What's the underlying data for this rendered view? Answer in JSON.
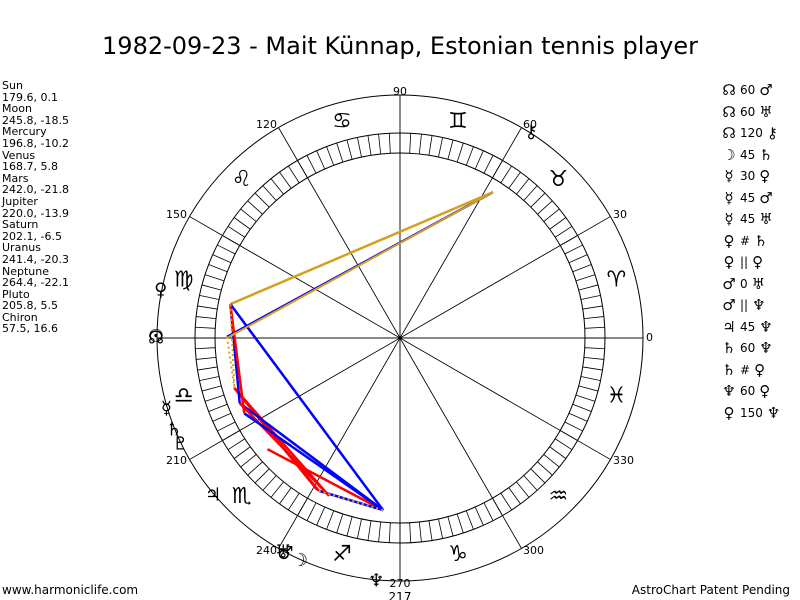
{
  "title": "1982-09-23 - Mait Künnap, Estonian tennis player",
  "footer": {
    "left": "www.harmoniclife.com",
    "right": "AstroChart Patent Pending"
  },
  "planets": [
    {
      "name": "Sun",
      "glyph": "☉",
      "lon": 179.6,
      "lat": 0.1,
      "coords": "179.6, 0.1"
    },
    {
      "name": "Moon",
      "glyph": "☽",
      "lon": 245.8,
      "lat": -18.5,
      "coords": "245.8, -18.5"
    },
    {
      "name": "Mercury",
      "glyph": "☿",
      "lon": 196.8,
      "lat": -10.2,
      "coords": "196.8, -10.2"
    },
    {
      "name": "Venus",
      "glyph": "♀",
      "lon": 168.7,
      "lat": 5.8,
      "coords": "168.7, 5.8"
    },
    {
      "name": "Mars",
      "glyph": "♂",
      "lon": 242.0,
      "lat": -21.8,
      "coords": "242.0, -21.8"
    },
    {
      "name": "Jupiter",
      "glyph": "♃",
      "lon": 220.0,
      "lat": -13.9,
      "coords": "220.0, -13.9"
    },
    {
      "name": "Saturn",
      "glyph": "♄",
      "lon": 202.1,
      "lat": -6.5,
      "coords": "202.1, -6.5"
    },
    {
      "name": "Uranus",
      "glyph": "♅",
      "lon": 241.4,
      "lat": -20.3,
      "coords": "241.4, -20.3"
    },
    {
      "name": "Neptune",
      "glyph": "♆",
      "lon": 264.4,
      "lat": -22.1,
      "coords": "264.4, -22.1"
    },
    {
      "name": "Pluto",
      "glyph": "♇",
      "lon": 205.8,
      "lat": 5.5,
      "coords": "205.8, 5.5"
    },
    {
      "name": "Chiron",
      "glyph": "⚷",
      "lon": 57.5,
      "lat": 16.6,
      "coords": "57.5, 16.6"
    }
  ],
  "aspect_list": [
    {
      "p1": "☊",
      "angle": "60",
      "p2": "♂"
    },
    {
      "p1": "☊",
      "angle": "60",
      "p2": "♅"
    },
    {
      "p1": "☊",
      "angle": "120",
      "p2": "⚷"
    },
    {
      "p1": "☽",
      "angle": "45",
      "p2": "♄"
    },
    {
      "p1": "☿",
      "angle": "30",
      "p2": "♀"
    },
    {
      "p1": "☿",
      "angle": "45",
      "p2": "♂"
    },
    {
      "p1": "☿",
      "angle": "45",
      "p2": "♅"
    },
    {
      "p1": "♀",
      "angle": "#",
      "p2": "♄"
    },
    {
      "p1": "♀",
      "angle": "||",
      "p2": "♀"
    },
    {
      "p1": "♂",
      "angle": "0",
      "p2": "♅"
    },
    {
      "p1": "♂",
      "angle": "||",
      "p2": "♆"
    },
    {
      "p1": "♃",
      "angle": "45",
      "p2": "♆"
    },
    {
      "p1": "♄",
      "angle": "60",
      "p2": "♆"
    },
    {
      "p1": "♄",
      "angle": "#",
      "p2": "♀"
    },
    {
      "p1": "♆",
      "angle": "60",
      "p2": "♀"
    },
    {
      "p1": "♀",
      "angle": "150",
      "p2": "♆"
    }
  ],
  "wheel_labels": [
    "0",
    "30",
    "60",
    "90",
    "120",
    "150",
    "210",
    "240",
    "270",
    "300",
    "330"
  ],
  "extra_labels": {
    "neptune_degree": "217"
  },
  "signs": [
    "♈",
    "♉",
    "♊",
    "♋",
    "♌",
    "♍",
    "♎",
    "♏",
    "♐",
    "♑",
    "♒",
    "♓"
  ],
  "node": {
    "glyph": "☊",
    "lon": 180
  },
  "colors": {
    "conjunction_line": "#ff0000",
    "opposition_line": "#ff0000",
    "trine_line": "#0000ff",
    "sextile_line": "#0000ff",
    "soft_line": "#d4a020",
    "dotted_line": "#d4a020",
    "ring": "#000000"
  },
  "chart_data": {
    "type": "astrological wheel",
    "title": "1982-09-23 - Mait Künnap, Estonian tennis player",
    "bodies": [
      {
        "name": "Sun",
        "longitude": 179.6,
        "latitude": 0.1
      },
      {
        "name": "Moon",
        "longitude": 245.8,
        "latitude": -18.5
      },
      {
        "name": "Mercury",
        "longitude": 196.8,
        "latitude": -10.2
      },
      {
        "name": "Venus",
        "longitude": 168.7,
        "latitude": 5.8
      },
      {
        "name": "Mars",
        "longitude": 242.0,
        "latitude": -21.8
      },
      {
        "name": "Jupiter",
        "longitude": 220.0,
        "latitude": -13.9
      },
      {
        "name": "Saturn",
        "longitude": 202.1,
        "latitude": -6.5
      },
      {
        "name": "Uranus",
        "longitude": 241.4,
        "latitude": -20.3
      },
      {
        "name": "Neptune",
        "longitude": 264.4,
        "latitude": -22.1
      },
      {
        "name": "Pluto",
        "longitude": 205.8,
        "latitude": 5.5
      },
      {
        "name": "Chiron",
        "longitude": 57.5,
        "latitude": 16.6
      }
    ],
    "degree_ticks": [
      0,
      30,
      60,
      90,
      120,
      150,
      210,
      240,
      270,
      300,
      330
    ]
  }
}
